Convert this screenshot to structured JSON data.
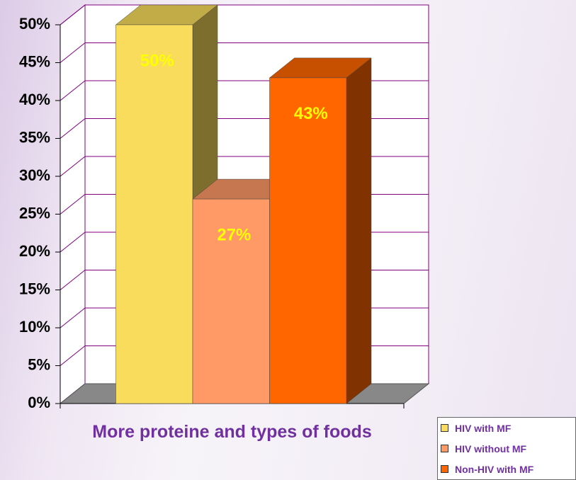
{
  "chart_data": {
    "type": "bar3d",
    "categories": [
      "More proteine and types of foods"
    ],
    "series": [
      {
        "name": "HIV with MF",
        "color": "#f9dc5c",
        "values": [
          50
        ],
        "value_labels": [
          "50%"
        ]
      },
      {
        "name": "HIV without MF",
        "color": "#ff9966",
        "values": [
          27
        ],
        "value_labels": [
          "27%"
        ]
      },
      {
        "name": "Non-HIV with MF",
        "color": "#ff6600",
        "values": [
          43
        ],
        "value_labels": [
          "43%"
        ]
      }
    ],
    "ylim": [
      0,
      50
    ],
    "yticks": [
      {
        "value": 0,
        "label": "0%"
      },
      {
        "value": 5,
        "label": "5%"
      },
      {
        "value": 10,
        "label": "10%"
      },
      {
        "value": 15,
        "label": "15%"
      },
      {
        "value": 20,
        "label": "20%"
      },
      {
        "value": 25,
        "label": "25%"
      },
      {
        "value": 30,
        "label": "30%"
      },
      {
        "value": 35,
        "label": "35%"
      },
      {
        "value": 40,
        "label": "40%"
      },
      {
        "value": 45,
        "label": "45%"
      },
      {
        "value": 50,
        "label": "50%"
      }
    ],
    "grid": true,
    "legend": "bottom-right"
  }
}
